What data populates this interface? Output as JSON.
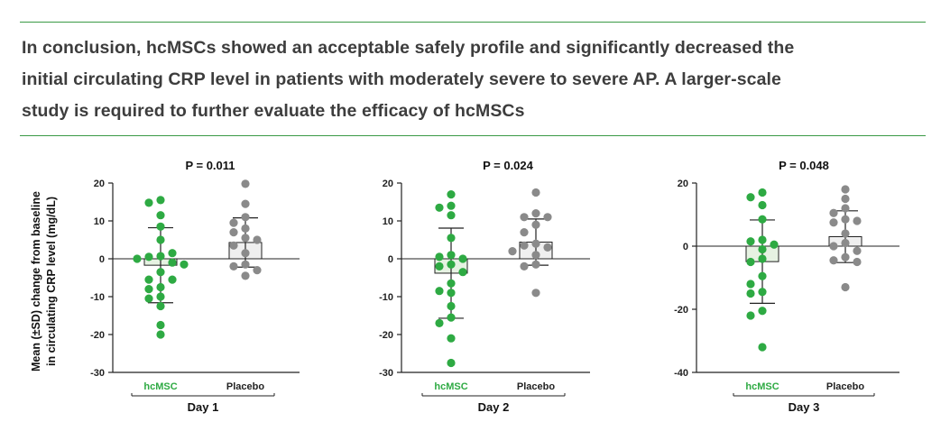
{
  "conclusion": {
    "line1": "In conclusion, hcMSCs showed an acceptable safely profile and significantly decreased the",
    "line2": "initial circulating CRP level in patients with moderately severe to severe AP.  A larger-scale",
    "line3": "study is required to further evaluate the efficacy of hcMSCs"
  },
  "colors": {
    "hcmsc": "#2eaa43",
    "placebo": "#8a8a8a",
    "rule": "#3a9a46",
    "hcmsc_bar": "#e6f2e2",
    "placebo_bar": "#efefef"
  },
  "y_axis_label_line1": "Mean (±SD) change from baseline",
  "y_axis_label_line2": "in circulating CRP level (mg/dL)",
  "chart_data": [
    {
      "type": "scatter",
      "title": "P = 0.011",
      "xlabel": "Day 1",
      "categories": [
        "hcMSC",
        "Placebo"
      ],
      "ylim": [
        -30,
        20
      ],
      "yticks": [
        20,
        10,
        0,
        -10,
        -20,
        -30
      ],
      "ytick_labels": [
        "20",
        "10",
        "0",
        "-10",
        "-20",
        "-30"
      ],
      "series": [
        {
          "name": "hcMSC",
          "mean": -1.7,
          "sd": 9.9,
          "values": [
            15.5,
            14.8,
            11.5,
            8.5,
            5,
            0.7,
            0.5,
            1.5,
            -1,
            0,
            -1.5,
            -3.5,
            -5.5,
            -5.5,
            -7.5,
            -8,
            -10,
            -10.5,
            -12.5,
            -17.5,
            -20
          ]
        },
        {
          "name": "Placebo",
          "mean": 4.3,
          "sd": 6.5,
          "values": [
            19.8,
            14.5,
            11,
            9.5,
            8,
            7,
            5.5,
            5,
            3.5,
            1.5,
            -1.5,
            -2,
            -3,
            -4.5
          ]
        }
      ]
    },
    {
      "type": "scatter",
      "title": "P = 0.024",
      "xlabel": "Day 2",
      "categories": [
        "hcMSC",
        "Placebo"
      ],
      "ylim": [
        -30,
        20
      ],
      "yticks": [
        20,
        10,
        0,
        -10,
        -20,
        -30
      ],
      "ytick_labels": [
        "20",
        "10",
        "0",
        "-10",
        "-20",
        "-30"
      ],
      "series": [
        {
          "name": "hcMSC",
          "mean": -3.8,
          "sd": 11.9,
          "values": [
            17,
            14,
            13.5,
            11.5,
            5.5,
            1,
            0.5,
            0,
            -1.5,
            -2,
            -3.5,
            -6.5,
            -8.5,
            -9,
            -12.5,
            -15.5,
            -17,
            -21,
            -27.5
          ]
        },
        {
          "name": "Placebo",
          "mean": 4.4,
          "sd": 6.1,
          "values": [
            17.5,
            12,
            11,
            11,
            9,
            7,
            4,
            3.5,
            3,
            2,
            1,
            -1.5,
            -2,
            -9
          ]
        }
      ]
    },
    {
      "type": "scatter",
      "title": "P = 0.048",
      "xlabel": "Day 3",
      "categories": [
        "hcMSC",
        "Placebo"
      ],
      "ylim": [
        -40,
        20
      ],
      "yticks": [
        20,
        0,
        -20,
        -40
      ],
      "ytick_labels": [
        "20",
        "0",
        "-20",
        "-40"
      ],
      "series": [
        {
          "name": "hcMSC",
          "mean": -4.9,
          "sd": 13.2,
          "values": [
            17,
            15.5,
            13,
            8.5,
            2,
            1.5,
            0.5,
            -1,
            -4,
            -5,
            -9.5,
            -12,
            -14.5,
            -15,
            -20.5,
            -22,
            -32
          ]
        },
        {
          "name": "Placebo",
          "mean": 3,
          "sd": 8.2,
          "values": [
            18,
            15,
            12,
            10.5,
            8.5,
            8,
            7.5,
            4,
            1,
            0,
            -1.5,
            -3.5,
            -4.5,
            -5,
            -13
          ]
        }
      ]
    }
  ]
}
